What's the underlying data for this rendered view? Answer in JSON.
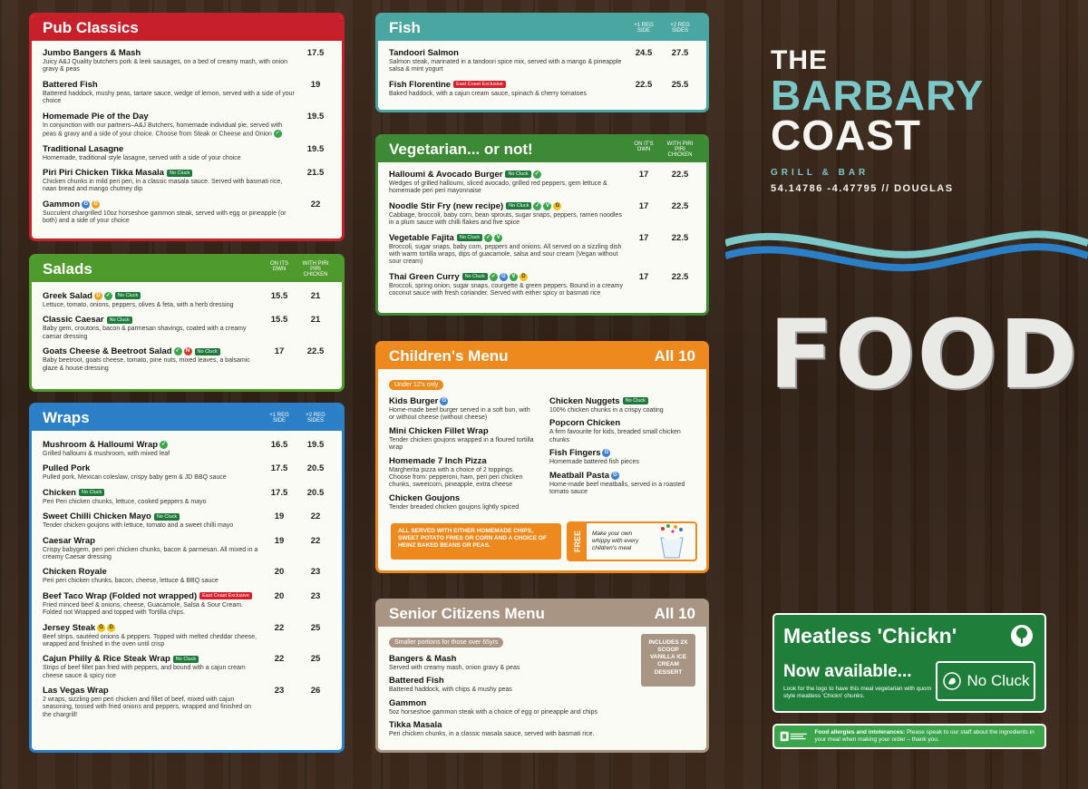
{
  "pub": {
    "title": "Pub Classics",
    "items": [
      {
        "name": "Jumbo Bangers & Mash",
        "desc": "Juicy A&J Quality butchers pork & leek sausages, on a bed of creamy mash, with onion gravy & peas",
        "p1": "17.5"
      },
      {
        "name": "Battered Fish",
        "desc": "Battered haddock, mushy peas, tartare sauce, wedge of lemon, served with a side of your choice",
        "p1": "19"
      },
      {
        "name": "Homemade Pie of the Day",
        "desc": "In conjunction with our partners–A&J Butchers, homemade individual pie, served with peas & gravy and a side of your choice. Choose from Steak or Cheese and Onion",
        "p1": "19.5"
      },
      {
        "name": "Traditional Lasagne",
        "desc": "Homemade, traditional style lasagne, served with a side of your choice",
        "p1": "19.5"
      },
      {
        "name": "Piri Piri Chicken Tikka Masala",
        "desc": "Chicken chunks in mild peri peri, in a classic masala sauce. Served with basmati rice, naan bread and mango chutney dip",
        "p1": "21.5"
      },
      {
        "name": "Gammon",
        "desc": "Succulent chargrilled 10oz horseshoe gammon steak, served with egg or pineapple (or both) and a side of your choice",
        "p1": "22"
      }
    ]
  },
  "salads": {
    "title": "Salads",
    "col1": "ON ITS OWN",
    "col2": "WITH PIRI PIRI CHICKEN",
    "items": [
      {
        "name": "Greek Salad",
        "desc": "Lettuce, tomato, onions, peppers, olives & feta, with a herb dressing",
        "p1": "15.5",
        "p2": "21"
      },
      {
        "name": "Classic Caesar",
        "desc": "Baby gem, croutons, bacon & parmesan shavings, coated with a creamy caesar dressing",
        "p1": "15.5",
        "p2": "21"
      },
      {
        "name": "Goats Cheese & Beetroot Salad",
        "desc": "Baby beetroot, goats cheese, tomato, pine nuts, mixed leaves, a balsamic glaze & house dressing",
        "p1": "17",
        "p2": "22.5"
      }
    ]
  },
  "wraps": {
    "title": "Wraps",
    "col1": "+1 REG SIDE",
    "col2": "+2 REG SIDES",
    "items": [
      {
        "name": "Mushroom & Halloumi Wrap",
        "desc": "Grilled halloumi & mushroom, with mixed leaf",
        "p1": "16.5",
        "p2": "19.5"
      },
      {
        "name": "Pulled Pork",
        "desc": "Pulled pork, Mexican coleslaw, crispy baby gem & JD BBQ sauce",
        "p1": "17.5",
        "p2": "20.5"
      },
      {
        "name": "Chicken",
        "desc": "Peri Peri chicken chunks, lettuce, cooked peppers & mayo",
        "p1": "17.5",
        "p2": "20.5"
      },
      {
        "name": "Sweet Chilli Chicken Mayo",
        "desc": "Tender chicken goujons with lettuce, tomato and a sweet chilli mayo",
        "p1": "19",
        "p2": "22"
      },
      {
        "name": "Caesar Wrap",
        "desc": "Crispy babygem, peri peri chicken chunks, bacon & parmesan. All mixed in a creamy Caesar dressing",
        "p1": "19",
        "p2": "22"
      },
      {
        "name": "Chicken Royale",
        "desc": "Peri peri chicken chunks, bacon, cheese, lettuce & BBQ sauce",
        "p1": "20",
        "p2": "23"
      },
      {
        "name": "Beef Taco Wrap (Folded not wrapped)",
        "desc": "Fried minced beef & onions, cheese, Guacamole, Salsa & Sour Cream. Folded not Wrapped and topped with Tortilla chips.",
        "p1": "20",
        "p2": "23"
      },
      {
        "name": "Jersey Steak",
        "desc": "Beef strips, sautéed onions & peppers. Topped with melted cheddar cheese, wrapped and finished in the oven until crisp",
        "p1": "22",
        "p2": "25"
      },
      {
        "name": "Cajun Philly & Rice Steak Wrap",
        "desc": "Strips of beef fillet pan fried with peppers, and bound with a cajun cream cheese sauce & spicy rice",
        "p1": "22",
        "p2": "25"
      },
      {
        "name": "Las Vegas Wrap",
        "desc": "2 wraps, sizzling peri peri chicken and fillet of beef, mixed with cajun seasoning, tossed with fried onions and peppers, wrapped and finished on the chargrill!",
        "p1": "23",
        "p2": "26"
      }
    ]
  },
  "fish": {
    "title": "Fish",
    "col1": "+1 REG SIDE",
    "col2": "+2 REG SIDES",
    "items": [
      {
        "name": "Tandoori Salmon",
        "desc": "Salmon steak, marinated in a tandoori spice mix, served with a mango & pineapple salsa & mint yogurt",
        "p1": "24.5",
        "p2": "27.5"
      },
      {
        "name": "Fish Florentine",
        "desc": "Baked haddock, with a cajun cream sauce, spinach & cherry tomatoes",
        "p1": "22.5",
        "p2": "25.5"
      }
    ]
  },
  "veg": {
    "title": "Vegetarian... or not!",
    "col1": "ON IT'S OWN",
    "col2": "WITH PIRI PIRI CHICKEN",
    "items": [
      {
        "name": "Halloumi & Avocado Burger",
        "desc": "Wedges of grilled halloumi, sliced avocado, grilled red peppers, gem lettuce & homemade peri peri mayonnaise",
        "p1": "17",
        "p2": "22.5"
      },
      {
        "name": "Noodle Stir Fry (new recipe)",
        "desc": "Cabbage, broccoli, baby corn, bean sprouts, sugar snaps, peppers, ramen noodles in a plum sauce with chilli flakes and five spice",
        "p1": "17",
        "p2": "22.5"
      },
      {
        "name": "Vegetable Fajita",
        "desc": "Broccoli, sugar snaps, baby corn, peppers and onions. All served on a sizzling dish with warm tortilla wraps, dips of guacamole, salsa and sour cream (Vegan without sour cream)",
        "p1": "17",
        "p2": "22.5"
      },
      {
        "name": "Thai Green Curry",
        "desc": "Broccoli, spring onion, sugar snaps, courgette & green peppers. Bound in a creamy coconut sauce with fresh coriander. Served with either spicy or basmati rice",
        "p1": "17",
        "p2": "22.5"
      }
    ]
  },
  "kids": {
    "title": "Children's Menu",
    "price": "All 10",
    "tag": "Under 12's only",
    "left": [
      {
        "name": "Kids Burger",
        "desc": "Home-made beef burger served in a soft bun, with or without cheese (without cheese)"
      },
      {
        "name": "Mini Chicken Fillet Wrap",
        "desc": "Tender chicken goujons wrapped in a floured tortilla wrap"
      },
      {
        "name": "Homemade 7 Inch Pizza",
        "desc": "Margherita pizza with a choice of 2 toppings. Choose from: pepperoni, ham, peri peri chicken chunks, sweetcorn, pineapple, extra cheese"
      },
      {
        "name": "Chicken Goujons",
        "desc": "Tender breaded chicken goujons lightly spiced"
      }
    ],
    "right": [
      {
        "name": "Chicken Nuggets",
        "desc": "100% chicken chunks in a crispy coating"
      },
      {
        "name": "Popcorn Chicken",
        "desc": "A firm favourite for kids, breaded small chicken chunks"
      },
      {
        "name": "Fish Fingers",
        "desc": "Homemade battered fish pieces"
      },
      {
        "name": "Meatball Pasta",
        "desc": "Home-made beef meatballs, served in a roasted tomato sauce"
      }
    ],
    "served": "ALL SERVED WITH EITHER HOMEMADE CHIPS, SWEET POTATO FRIES OR CORN AND A CHOICE OF HEINZ BAKED BEANS OR PEAS.",
    "free": "FREE",
    "free_text": "Make your own whippy with every children's meal"
  },
  "senior": {
    "title": "Senior Citizens Menu",
    "price": "All 10",
    "tag": "Smaller portions for those over 65yrs",
    "includes": "INCLUDES 2X SCOOP VANILLA ICE CREAM DESSERT",
    "items": [
      {
        "name": "Bangers & Mash",
        "desc": "Served with creamy mash, onion gravy & peas"
      },
      {
        "name": "Battered Fish",
        "desc": "Battered haddock, with chips & mushy peas"
      },
      {
        "name": "Gammon",
        "desc": "5oz horseshoe gammon steak with a choice of egg or pineapple and chips"
      },
      {
        "name": "Tikka Masala",
        "desc": "Peri chicken chunks, in a classic masala sauce, served with basmati rice."
      }
    ]
  },
  "brand": {
    "the": "THE",
    "barbary": "BARBARY",
    "coast": "COAST",
    "sub": "GRILL & BAR",
    "coords": "54.14786 -4.47795 // DOUGLAS",
    "food": "FOOD"
  },
  "meatless": {
    "title": "Meatless 'Chickn'",
    "now": "Now available...",
    "desc": "Look for the logo to have this meal vegetarian with quorn style meatless 'Chickn' chunks.",
    "button": "No Cluck"
  },
  "allergy": {
    "bold": "Food allergies and intolerances:",
    "text": "Please speak to our staff about the ingredients in your meal when making your order – thank you."
  },
  "badges": {
    "no_cluck": "No Cluck",
    "east_coast": "East Coast Exclusive"
  },
  "colors": {
    "red": "#c8202a",
    "green": "#4f9a2c",
    "blue": "#2a7fc7",
    "teal": "#4aa6a0",
    "darkgreen": "#3c8a36",
    "orange": "#ee8a1d",
    "taupe": "#a99584"
  }
}
